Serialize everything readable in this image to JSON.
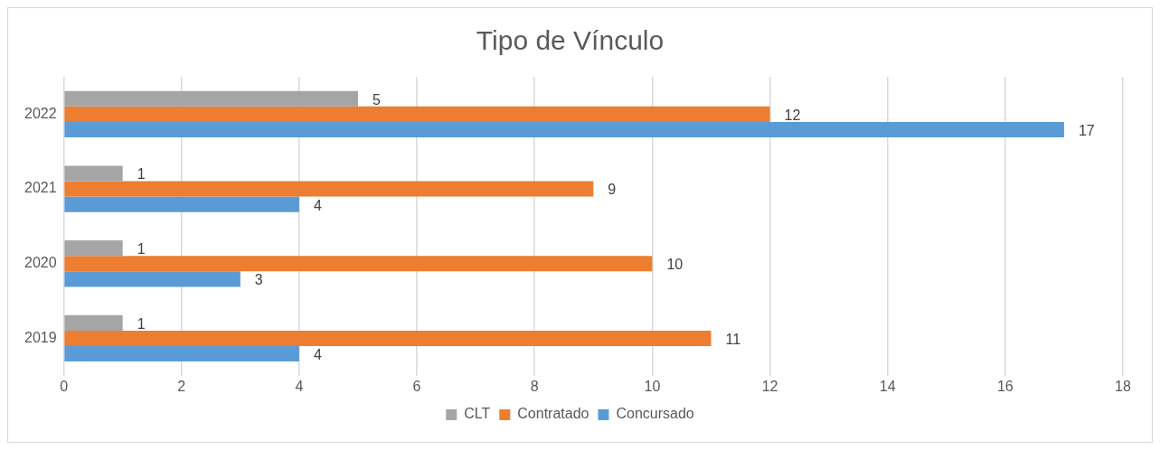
{
  "chart_data": {
    "type": "bar",
    "orientation": "horizontal",
    "title": "Tipo de Vínculo",
    "categories": [
      "2022",
      "2021",
      "2020",
      "2019"
    ],
    "series": [
      {
        "name": "CLT",
        "color": "#a5a5a5",
        "values": [
          5,
          1,
          1,
          1
        ]
      },
      {
        "name": "Contratado",
        "color": "#ed7d31",
        "values": [
          12,
          9,
          10,
          11
        ]
      },
      {
        "name": "Concursado",
        "color": "#5b9bd5",
        "values": [
          17,
          4,
          3,
          4
        ]
      }
    ],
    "xlim": [
      0,
      18
    ],
    "xticks": [
      0,
      2,
      4,
      6,
      8,
      10,
      12,
      14,
      16,
      18
    ],
    "grid": "x",
    "legend": "bottom",
    "data_labels": true
  }
}
